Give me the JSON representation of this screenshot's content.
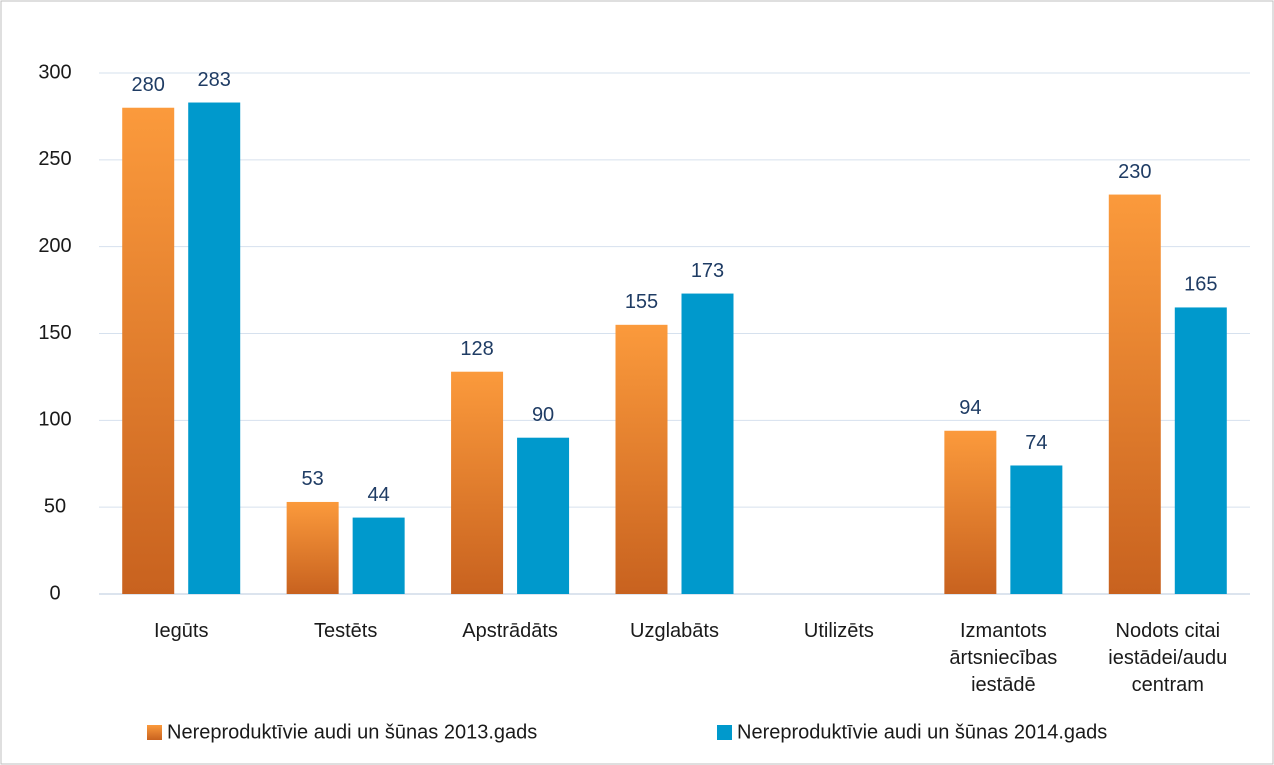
{
  "chart_data": {
    "type": "bar",
    "categories": [
      "Iegūts",
      "Testēts",
      "Apstrādāts",
      "Uzglabāts",
      "Utilizēts",
      "Izmantots ārtsniecības iestādē",
      "Nodots citai iestādei/audu centram"
    ],
    "series": [
      {
        "name": "Nereproduktīvie audi un šūnas 2013.gads",
        "color": "#f28a2e",
        "values": [
          280,
          53,
          128,
          155,
          null,
          94,
          230
        ]
      },
      {
        "name": "Nereproduktīvie audi un šūnas 2014.gads",
        "color": "#0099cc",
        "values": [
          283,
          44,
          90,
          173,
          null,
          74,
          165
        ]
      }
    ],
    "ylim": [
      0,
      300
    ],
    "yticks": [
      0,
      50,
      100,
      150,
      200,
      250,
      300
    ],
    "grid": true,
    "legend": "bottom"
  }
}
